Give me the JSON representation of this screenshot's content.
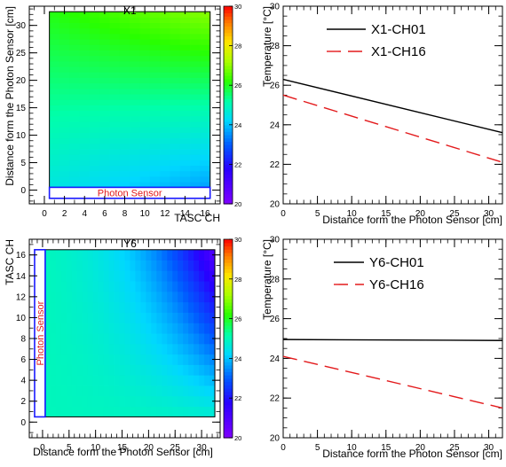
{
  "chart_data": [
    {
      "id": "x1-map",
      "type": "heatmap",
      "title": "X1",
      "xlabel": "TASC CH",
      "ylabel": "Distance form the Photon Sensor [cm]",
      "xlim": [
        -1.5,
        17.5
      ],
      "ylim": [
        -2.5,
        33.5
      ],
      "xticks": [
        0,
        2,
        4,
        6,
        8,
        10,
        12,
        14,
        16
      ],
      "yticks": [
        0,
        5,
        10,
        15,
        20,
        25,
        30
      ],
      "zlim": [
        20,
        30
      ],
      "zticks": [
        20,
        22,
        24,
        26,
        28,
        30
      ],
      "map_extent": {
        "x": [
          0.5,
          16.5
        ],
        "y": [
          0.5,
          32.5
        ]
      },
      "sensor_label": "Photon Sensor",
      "sensor_box": {
        "x": [
          0.5,
          16.5
        ],
        "y": [
          -1.5,
          0.5
        ]
      },
      "field": "T = 24.6 + 0.045*y - 0.06*ch + 0.0035*ch*y",
      "nx": 16,
      "ny": 32
    },
    {
      "id": "x1-profile",
      "type": "line",
      "xlabel": "Distance form the Photon Sensor [cm]",
      "ylabel": "Temperature [°C]",
      "xlim": [
        0,
        32
      ],
      "ylim": [
        20,
        30
      ],
      "xticks": [
        0,
        5,
        10,
        15,
        20,
        25,
        30
      ],
      "yticks": [
        20,
        22,
        24,
        26,
        28,
        30
      ],
      "legend_position": "top-right",
      "series": [
        {
          "name": "X1-CH01",
          "color": "#000000",
          "dash": "solid",
          "x": [
            0,
            32
          ],
          "y": [
            26.3,
            23.6
          ]
        },
        {
          "name": "X1-CH16",
          "color": "#e31a1c",
          "dash": "dashed",
          "x": [
            0,
            32
          ],
          "y": [
            25.5,
            22.1
          ]
        }
      ]
    },
    {
      "id": "y6-map",
      "type": "heatmap",
      "title": "Y6",
      "xlabel": "Distance form the Photon Sensor [cm]",
      "ylabel": "TASC CH",
      "xlim": [
        -2.5,
        33.5
      ],
      "ylim": [
        -1.5,
        17.5
      ],
      "xticks": [
        0,
        5,
        10,
        15,
        20,
        25,
        30
      ],
      "yticks": [
        0,
        2,
        4,
        6,
        8,
        10,
        12,
        14,
        16
      ],
      "zlim": [
        20,
        30
      ],
      "zticks": [
        20,
        22,
        24,
        26,
        28,
        30
      ],
      "map_extent": {
        "x": [
          0.5,
          32.5
        ],
        "y": [
          0.5,
          16.5
        ]
      },
      "sensor_label": "Photon Sensor",
      "sensor_box": {
        "x": [
          -1.5,
          0.5
        ],
        "y": [
          0.5,
          16.5
        ]
      },
      "field": "T = 25.0 - 0.003*x - 0.058*ch*x/32 - 0.18*ch*(x/32)^3",
      "nx": 32,
      "ny": 16
    },
    {
      "id": "y6-profile",
      "type": "line",
      "xlabel": "Distance form the Photon Sensor [cm]",
      "ylabel": "Temperature [°C]",
      "xlim": [
        0,
        32
      ],
      "ylim": [
        20,
        30
      ],
      "xticks": [
        0,
        5,
        10,
        15,
        20,
        25,
        30
      ],
      "yticks": [
        20,
        22,
        24,
        26,
        28,
        30
      ],
      "legend_position": "top-right",
      "series": [
        {
          "name": "Y6-CH01",
          "color": "#000000",
          "dash": "solid",
          "x": [
            0,
            32
          ],
          "y": [
            24.95,
            24.9
          ]
        },
        {
          "name": "Y6-CH16",
          "color": "#e31a1c",
          "dash": "dashed",
          "x": [
            0,
            32
          ],
          "y": [
            24.1,
            21.5
          ]
        }
      ]
    }
  ]
}
